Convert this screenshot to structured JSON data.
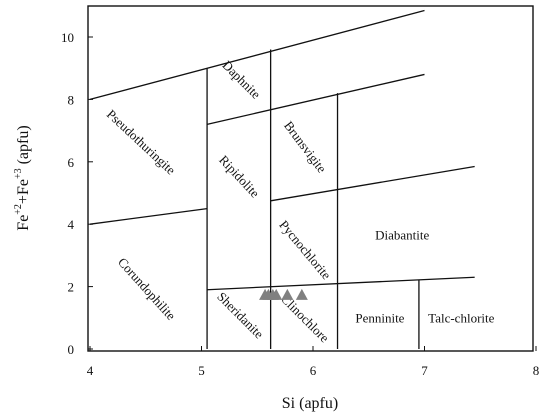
{
  "chart_data": {
    "type": "scatter",
    "title": "",
    "xlabel": "Si (apfu)",
    "ylabel_parts": {
      "base1": "Fe",
      "sup1": "+2",
      "mid": "+Fe",
      "sup2": "+3",
      "end": " (apfu)"
    },
    "xlim": [
      4,
      8
    ],
    "ylim": [
      0,
      11
    ],
    "xticks": [
      4,
      5,
      6,
      7,
      8
    ],
    "yticks": [
      0,
      2,
      4,
      6,
      8,
      10
    ],
    "grid": false,
    "legend": "none",
    "marker_color": "#808080",
    "series": [
      {
        "marker": "triangle",
        "points": [
          {
            "x": 5.57,
            "y": 1.75
          },
          {
            "x": 5.6,
            "y": 1.75
          },
          {
            "x": 5.64,
            "y": 1.75
          },
          {
            "x": 5.67,
            "y": 1.75
          },
          {
            "x": 5.77,
            "y": 1.75
          },
          {
            "x": 5.9,
            "y": 1.75
          }
        ]
      }
    ],
    "boundaries": [
      {
        "x": [
          4.0,
          7.0
        ],
        "y": [
          8.0,
          10.85
        ]
      },
      {
        "x": [
          5.05,
          7.0
        ],
        "y": [
          7.2,
          8.8
        ]
      },
      {
        "x": [
          4.0,
          5.05
        ],
        "y": [
          4.0,
          4.5
        ]
      },
      {
        "x": [
          5.62,
          7.45
        ],
        "y": [
          4.75,
          5.85
        ]
      },
      {
        "x": [
          5.05,
          7.45
        ],
        "y": [
          1.9,
          2.3
        ]
      },
      {
        "x": [
          5.05,
          5.05
        ],
        "y": [
          0,
          9.0
        ]
      },
      {
        "x": [
          5.62,
          5.62
        ],
        "y": [
          0,
          9.6
        ]
      },
      {
        "x": [
          6.22,
          6.22
        ],
        "y": [
          0,
          8.2
        ]
      },
      {
        "x": [
          6.95,
          6.95
        ],
        "y": [
          0,
          2.2
        ]
      }
    ],
    "field_labels": [
      {
        "text": "Daphnite",
        "x": 5.35,
        "y": 8.6,
        "rotate": 45
      },
      {
        "text": "Brunsvigite",
        "x": 5.92,
        "y": 6.45,
        "rotate": 53
      },
      {
        "text": "Pseudothuringite",
        "x": 4.45,
        "y": 6.6,
        "rotate": 43
      },
      {
        "text": "Ripidolite",
        "x": 5.33,
        "y": 5.5,
        "rotate": 47
      },
      {
        "text": "Pycnochlorite",
        "x": 5.92,
        "y": 3.15,
        "rotate": 50
      },
      {
        "text": "Diabantite",
        "x": 6.8,
        "y": 3.6,
        "rotate": 0
      },
      {
        "text": "Corundophilite",
        "x": 4.5,
        "y": 1.9,
        "rotate": 48
      },
      {
        "text": "Sheridanite",
        "x": 5.34,
        "y": 1.05,
        "rotate": 45
      },
      {
        "text": "Clinochlore",
        "x": 5.92,
        "y": 0.95,
        "rotate": 45
      },
      {
        "text": "Penninite",
        "x": 6.6,
        "y": 0.95,
        "rotate": 0
      },
      {
        "text": "Talc-chlorite",
        "x": 7.33,
        "y": 0.95,
        "rotate": 0
      }
    ]
  }
}
